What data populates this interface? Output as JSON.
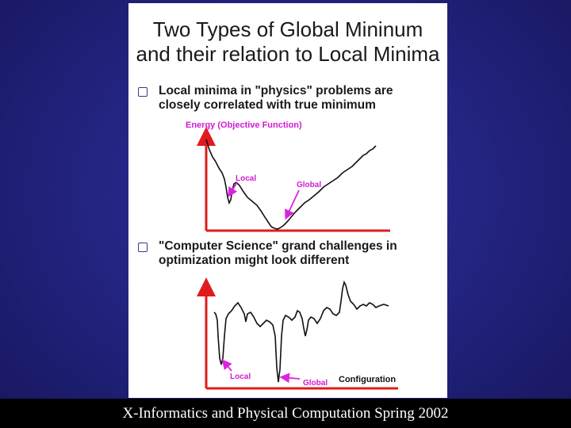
{
  "slide": {
    "title_line1": "Two Types of Global Mininum",
    "title_line2": "and their relation to Local Minima",
    "bullet1": {
      "line1": "Local minima in \"physics\" problems are",
      "line2": "closely correlated with true minimum"
    },
    "bullet2": {
      "line1": "\"Computer Science\" grand challenges in",
      "line2": "optimization might look different"
    },
    "plot1": {
      "axis_label": "Energy (Objective Function)",
      "local_label": "Local",
      "global_label": "Global"
    },
    "plot2": {
      "local_label": "Local",
      "global_label": "Global",
      "x_label": "Configuration"
    },
    "colors": {
      "axis": "#e11b1b",
      "arrow": "#dd22dd",
      "label": "#d01cd0",
      "curve": "#111111"
    }
  },
  "footer": {
    "text": "X-Informatics and Physical Computation Spring 2002"
  }
}
